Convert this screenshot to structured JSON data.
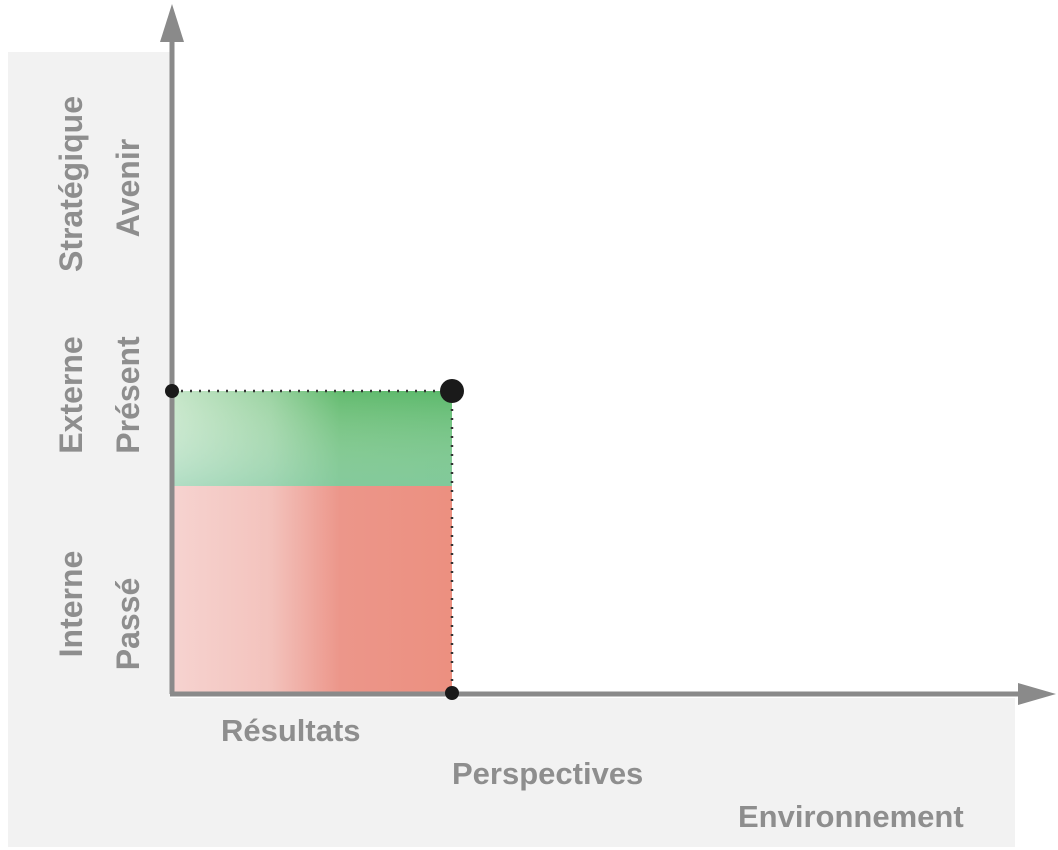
{
  "y_axis": {
    "levels": [
      {
        "outer": "Interne",
        "inner": "Passé"
      },
      {
        "outer": "Externe",
        "inner": "Présent"
      },
      {
        "outer": "Stratégique",
        "inner": "Avenir"
      }
    ]
  },
  "x_axis": {
    "levels": [
      "Résultats",
      "Perspectives",
      "Environnement"
    ]
  },
  "colors": {
    "axis": "#8a8a8a",
    "label": "#8e8e8e",
    "panel": "#f2f2f2",
    "green_zone": "#5cb96c",
    "red_zone": "#ec9080",
    "dot": "#1a1a1a"
  }
}
